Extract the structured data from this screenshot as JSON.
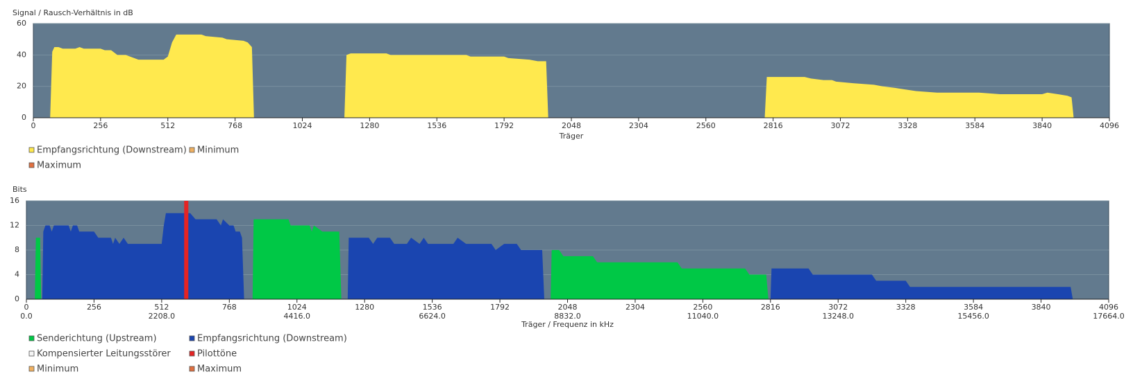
{
  "chart_data": [
    {
      "type": "area",
      "title": "Signal / Rausch-Verhältnis in dB",
      "xlabel": "Träger",
      "xlim": [
        0,
        4096
      ],
      "xticks": [
        0,
        256,
        512,
        768,
        1024,
        1280,
        1536,
        1792,
        2048,
        2304,
        2560,
        2816,
        3072,
        3328,
        3584,
        3840,
        4096
      ],
      "ylim": [
        0,
        60
      ],
      "yticks": [
        0,
        20,
        40,
        60
      ],
      "grid": true,
      "series": [
        {
          "name": "Empfangsrichtung (Downstream)",
          "color": "#ffe94e",
          "x": [
            64,
            72,
            80,
            96,
            112,
            160,
            176,
            192,
            256,
            272,
            296,
            304,
            320,
            352,
            368,
            384,
            400,
            496,
            512,
            528,
            544,
            640,
            656,
            720,
            736,
            800,
            816,
            832,
            840,
            null,
            1184,
            1192,
            1208,
            1344,
            1360,
            1648,
            1664,
            1792,
            1808,
            1888,
            1920,
            1952,
            1960,
            null,
            2784,
            2792,
            2936,
            2960,
            3008,
            3040,
            3056,
            3120,
            3200,
            3232,
            3280,
            3320,
            3360,
            3440,
            3600,
            3680,
            3840,
            3860,
            3900,
            3936,
            3952,
            3960
          ],
          "values": [
            0,
            42,
            45,
            45,
            44,
            44,
            45,
            44,
            44,
            43,
            43,
            42,
            40,
            40,
            39,
            38,
            37,
            37,
            39,
            48,
            53,
            53,
            52,
            51,
            50,
            49,
            48,
            45,
            0,
            null,
            0,
            40,
            41,
            41,
            40,
            40,
            39,
            39,
            38,
            37,
            36,
            36,
            0,
            null,
            0,
            26,
            26,
            25,
            24,
            24,
            23,
            22,
            21,
            20,
            19,
            18,
            17,
            16,
            16,
            15,
            15,
            16,
            15,
            14,
            13,
            0
          ]
        },
        {
          "name": "Minimum",
          "color": "#f0b060",
          "x": [],
          "values": []
        },
        {
          "name": "Maximum",
          "color": "#e07040",
          "x": [],
          "values": []
        }
      ]
    },
    {
      "type": "area",
      "title": "Bits",
      "xlabel": "Träger / Frequenz in kHz",
      "xlim": [
        0,
        4096
      ],
      "xticks": [
        0,
        256,
        512,
        768,
        1024,
        1280,
        1536,
        1792,
        2048,
        2304,
        2560,
        2816,
        3072,
        3328,
        3584,
        3840,
        4096
      ],
      "x2lim": [
        0,
        17664
      ],
      "x2ticks": [
        {
          "value": 0,
          "label": "0.0"
        },
        {
          "value": 2208,
          "label": "2208.0"
        },
        {
          "value": 4416,
          "label": "4416.0"
        },
        {
          "value": 6624,
          "label": "6624.0"
        },
        {
          "value": 8832,
          "label": "8832.0"
        },
        {
          "value": 11040,
          "label": "11040.0"
        },
        {
          "value": 13248,
          "label": "13248.0"
        },
        {
          "value": 15456,
          "label": "15456.0"
        },
        {
          "value": 17664,
          "label": "17664.0"
        }
      ],
      "ylim": [
        0,
        16
      ],
      "yticks": [
        0,
        4,
        8,
        12,
        16
      ],
      "grid": true,
      "series": [
        {
          "name": "Senderichtung (Upstream)",
          "color": "#00c846",
          "x": [
            32,
            36,
            52,
            56,
            null,
            856,
            860,
            992,
            1000,
            1072,
            1080,
            1088,
            1120,
            1184,
            1192,
            null,
            1984,
            1988,
            2016,
            2032,
            2144,
            2160,
            2464,
            2480,
            2720,
            2736,
            2800,
            2808
          ],
          "values": [
            0,
            10,
            10,
            0,
            null,
            0,
            13,
            13,
            12,
            12,
            11,
            12,
            11,
            11,
            0,
            null,
            0,
            8,
            8,
            7,
            7,
            6,
            6,
            5,
            5,
            4,
            4,
            0
          ]
        },
        {
          "name": "Empfangsrichtung (Downstream)",
          "color": "#1a45b0",
          "x": [
            60,
            64,
            72,
            88,
            96,
            104,
            160,
            168,
            176,
            192,
            200,
            256,
            272,
            320,
            328,
            336,
            352,
            368,
            384,
            512,
            520,
            528,
            620,
            640,
            720,
            736,
            744,
            768,
            784,
            792,
            808,
            816,
            824,
            null,
            1216,
            1220,
            1296,
            1312,
            1328,
            1376,
            1392,
            1440,
            1456,
            1488,
            1504,
            1520,
            1616,
            1632,
            1664,
            1760,
            1776,
            1808,
            1856,
            1872,
            1952,
            1960,
            null,
            2816,
            2820,
            2960,
            2976,
            3200,
            3216,
            3328,
            3344,
            3952,
            3960
          ],
          "values": [
            0,
            11,
            12,
            12,
            11,
            12,
            12,
            11,
            12,
            12,
            11,
            11,
            10,
            10,
            9,
            10,
            9,
            10,
            9,
            9,
            12,
            14,
            14,
            13,
            13,
            12,
            13,
            12,
            12,
            11,
            11,
            10,
            0,
            null,
            0,
            10,
            10,
            9,
            10,
            10,
            9,
            9,
            10,
            9,
            10,
            9,
            9,
            10,
            9,
            9,
            8,
            9,
            9,
            8,
            8,
            0,
            null,
            0,
            5,
            5,
            4,
            4,
            3,
            3,
            2,
            2,
            0
          ]
        },
        {
          "name": "Kompensierter Leitungsstörer",
          "color": "#f4f4f4",
          "x": [],
          "values": []
        },
        {
          "name": "Pilottöne",
          "color": "#e52424",
          "bar": true,
          "x": [
            605
          ],
          "values": [
            16
          ]
        },
        {
          "name": "Minimum",
          "color": "#f0b060",
          "x": [],
          "values": []
        },
        {
          "name": "Maximum",
          "color": "#e07040",
          "x": [],
          "values": []
        }
      ]
    }
  ]
}
